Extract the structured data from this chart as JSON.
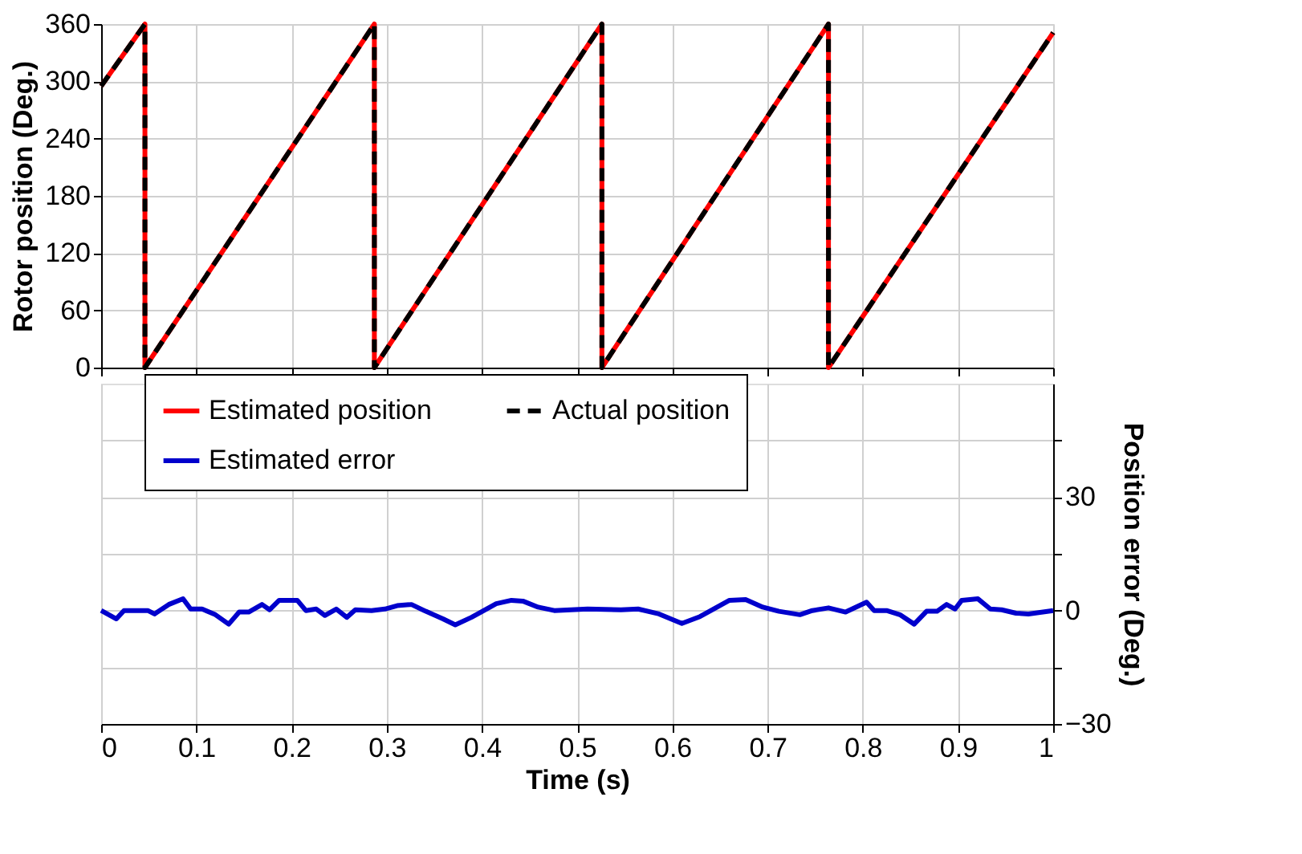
{
  "chart_data": [
    {
      "type": "line",
      "ylabel": "Rotor position (Deg.)",
      "xlim": [
        0,
        1
      ],
      "xticks": [
        0,
        0.1,
        0.2,
        0.3,
        0.4,
        0.5,
        0.6,
        0.7,
        0.8,
        0.9,
        1
      ],
      "ylim": [
        0,
        360
      ],
      "yticks": [
        0,
        60,
        120,
        180,
        240,
        300,
        360
      ],
      "grid": true,
      "tick_labels": "y",
      "legend": "bottom",
      "series": [
        {
          "name": "Estimated position",
          "color": "#ff0000",
          "line_style": "solid",
          "x": [
            0,
            0.046,
            0.046,
            0.287,
            0.287,
            0.526,
            0.526,
            0.764,
            0.764,
            1
          ],
          "values": [
            295,
            360,
            0,
            360,
            0,
            360,
            0,
            360,
            0,
            351
          ]
        },
        {
          "name": "Actual position",
          "color": "#000000",
          "line_style": "dashed",
          "x": [
            0,
            0.046,
            0.046,
            0.287,
            0.287,
            0.526,
            0.526,
            0.764,
            0.764,
            1
          ],
          "values": [
            295,
            360,
            0,
            360,
            0,
            360,
            0,
            360,
            0,
            351
          ]
        }
      ]
    },
    {
      "type": "line",
      "xlabel": "Time (s)",
      "y2label": "Position error (Deg.)",
      "xlim": [
        0,
        1
      ],
      "xticks": [
        0,
        0.1,
        0.2,
        0.3,
        0.4,
        0.5,
        0.6,
        0.7,
        0.8,
        0.9,
        1
      ],
      "y2lim": [
        -30,
        60
      ],
      "y2ticks": [
        -30,
        {
          "value": -15,
          "label": null
        },
        0,
        {
          "value": 15,
          "label": null
        },
        30,
        {
          "value": 45,
          "label": null
        }
      ],
      "grid": true,
      "legend": "top",
      "series": [
        {
          "name": "Estimated error",
          "color": "#0000cc",
          "line_style": "solid",
          "axis": "y2",
          "x": [
            0,
            0.016,
            0.024,
            0.049,
            0.056,
            0.071,
            0.086,
            0.094,
            0.106,
            0.12,
            0.134,
            0.145,
            0.155,
            0.169,
            0.177,
            0.187,
            0.206,
            0.215,
            0.226,
            0.235,
            0.247,
            0.258,
            0.267,
            0.284,
            0.298,
            0.311,
            0.326,
            0.341,
            0.359,
            0.372,
            0.389,
            0.415,
            0.431,
            0.443,
            0.459,
            0.476,
            0.511,
            0.546,
            0.564,
            0.586,
            0.61,
            0.629,
            0.647,
            0.66,
            0.677,
            0.695,
            0.712,
            0.734,
            0.747,
            0.764,
            0.782,
            0.804,
            0.812,
            0.825,
            0.839,
            0.854,
            0.867,
            0.878,
            0.888,
            0.897,
            0.904,
            0.921,
            0.934,
            0.946,
            0.961,
            0.974,
            1
          ],
          "values": [
            0,
            -2.2,
            0,
            0,
            -0.9,
            1.6,
            3.1,
            0.4,
            0.4,
            -1.1,
            -3.6,
            -0.4,
            -0.4,
            1.6,
            0.2,
            2.7,
            2.7,
            0,
            0.4,
            -1.3,
            0.4,
            -1.8,
            0.2,
            0,
            0.4,
            1.3,
            1.6,
            -0.2,
            -2.2,
            -3.8,
            -1.8,
            1.8,
            2.7,
            2.5,
            0.9,
            0,
            0.4,
            0.2,
            0.4,
            -0.9,
            -3.4,
            -1.6,
            0.9,
            2.7,
            2.9,
            0.9,
            -0.2,
            -1.1,
            0,
            0.7,
            -0.4,
            2.2,
            0,
            0,
            -1.1,
            -3.6,
            -0.2,
            -0.2,
            1.6,
            0.4,
            2.7,
            3.1,
            0.4,
            0.2,
            -0.7,
            -0.9,
            0
          ]
        }
      ]
    }
  ]
}
